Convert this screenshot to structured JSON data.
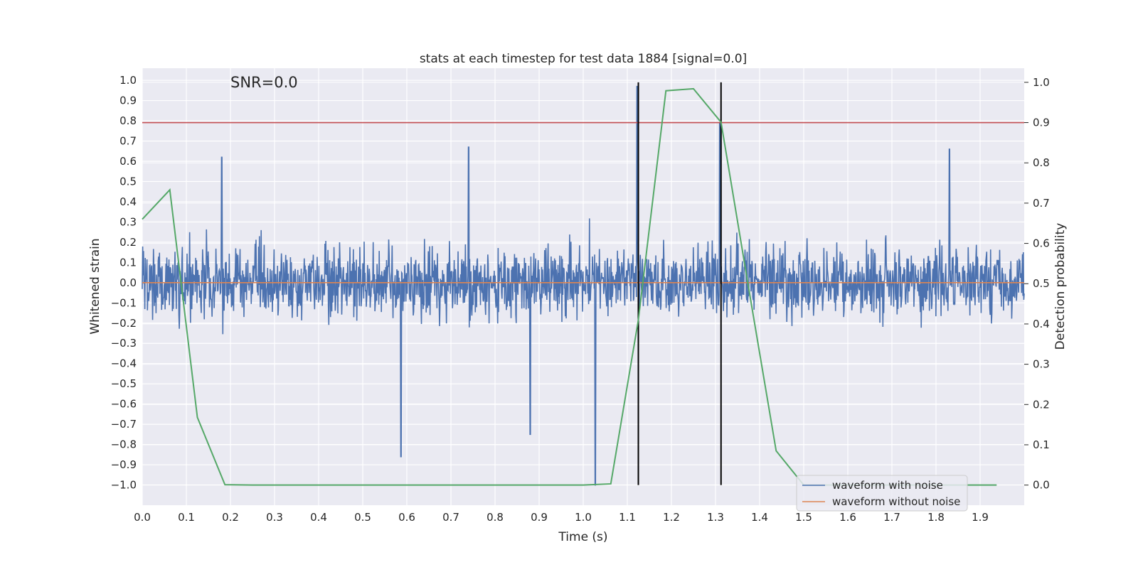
{
  "chart_data": {
    "type": "line",
    "title": "stats at each timestep for test data 1884 [signal=0.0]",
    "annotation": "SNR=0.0",
    "xlabel": "Time (s)",
    "ylabel_left": "Whitened strain",
    "ylabel_right": "Detection probability",
    "xlim": [
      0.0,
      2.0
    ],
    "ylim_left": [
      -1.1,
      1.06
    ],
    "ylim_right": [
      -0.05,
      1.035
    ],
    "x_ticks": [
      "0.0",
      "0.1",
      "0.2",
      "0.3",
      "0.4",
      "0.5",
      "0.6",
      "0.7",
      "0.8",
      "0.9",
      "1.0",
      "1.1",
      "1.2",
      "1.3",
      "1.4",
      "1.5",
      "1.6",
      "1.7",
      "1.8",
      "1.9"
    ],
    "y_left_ticks": [
      "1.0",
      "0.9",
      "0.8",
      "0.7",
      "0.6",
      "0.5",
      "0.4",
      "0.3",
      "0.2",
      "0.1",
      "0.0",
      "−0.1",
      "−0.2",
      "−0.3",
      "−0.4",
      "−0.5",
      "−0.6",
      "−0.7",
      "−0.8",
      "−0.9",
      "−1.0"
    ],
    "y_right_ticks": [
      "1.0",
      "0.9",
      "0.8",
      "0.7",
      "0.6",
      "0.5",
      "0.4",
      "0.3",
      "0.2",
      "0.1",
      "0.0"
    ],
    "grid": true,
    "legend": {
      "placement": "lower-right",
      "entries": [
        {
          "label": "waveform with noise",
          "color": "#4c72b0"
        },
        {
          "label": "waveform without noise",
          "color": "#dd8452"
        }
      ]
    },
    "series": [
      {
        "name": "waveform with noise",
        "axis": "left",
        "color": "#4c72b0",
        "kind": "noise",
        "x_range": [
          0.0,
          2.0
        ],
        "typical_amplitude": 0.5,
        "notable_points": [
          {
            "x": 0.18,
            "y": 0.62
          },
          {
            "x": 0.587,
            "y": -0.86
          },
          {
            "x": 0.74,
            "y": 0.67
          },
          {
            "x": 0.88,
            "y": -0.75
          },
          {
            "x": 1.027,
            "y": -1.0
          },
          {
            "x": 1.122,
            "y": 0.97
          },
          {
            "x": 1.31,
            "y": 0.79
          },
          {
            "x": 1.83,
            "y": 0.66
          }
        ]
      },
      {
        "name": "waveform without noise",
        "axis": "left",
        "color": "#dd8452",
        "x": [
          0.0,
          2.0
        ],
        "y": [
          0.0,
          0.0
        ]
      },
      {
        "name": "detection probability",
        "axis": "right",
        "color": "#55a868",
        "x": [
          0.0,
          0.0625,
          0.125,
          0.1875,
          0.25,
          0.3125,
          0.375,
          0.4375,
          0.5,
          0.5625,
          0.625,
          0.6875,
          0.75,
          0.8125,
          0.875,
          0.9375,
          1.0,
          1.0625,
          1.125,
          1.1875,
          1.25,
          1.3125,
          1.375,
          1.4375,
          1.5,
          1.5625,
          1.625,
          1.6875,
          1.75,
          1.8125,
          1.875,
          1.9375
        ],
        "y": [
          0.66,
          0.733,
          0.168,
          0.001,
          0.0,
          0.0,
          0.0,
          0.0,
          0.0,
          0.0,
          0.0,
          0.0,
          0.0,
          0.0,
          0.0,
          0.0,
          0.0,
          0.003,
          0.41,
          0.979,
          0.984,
          0.901,
          0.49,
          0.085,
          0.0,
          0.0,
          0.0,
          0.0,
          0.0,
          0.0,
          0.0,
          0.0
        ]
      }
    ],
    "threshold": {
      "axis": "right",
      "y": 0.9,
      "color": "#c44e52"
    },
    "vertical_markers": [
      {
        "x": 1.125,
        "color": "#000000"
      },
      {
        "x": 1.3125,
        "color": "#000000"
      }
    ]
  }
}
